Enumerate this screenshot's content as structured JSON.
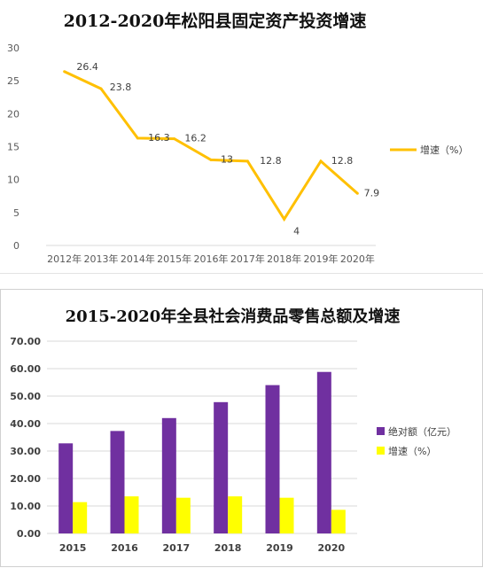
{
  "chart_data": [
    {
      "type": "line",
      "title": "2012-2020年松阳县固定资产投资增速",
      "categories": [
        "2012年",
        "2013年",
        "2014年",
        "2015年",
        "2016年",
        "2017年",
        "2018年",
        "2019年",
        "2020年"
      ],
      "series": [
        {
          "name": "增速（%）",
          "values": [
            26.4,
            23.8,
            16.3,
            16.2,
            13,
            12.8,
            4,
            12.8,
            7.9
          ],
          "color": "#FFC000"
        }
      ],
      "data_labels": [
        "26.4",
        "23.8",
        "16.3",
        "16.2",
        "13",
        "12.8",
        "4",
        "12.8",
        "7.9"
      ],
      "ylim": [
        0,
        30
      ],
      "yticks": [
        "0",
        "5",
        "10",
        "15",
        "20",
        "25",
        "30"
      ],
      "grid": false,
      "legend": "right"
    },
    {
      "type": "bar",
      "title": "2015-2020年全县社会消费品零售总额及增速",
      "categories": [
        "2015",
        "2016",
        "2017",
        "2018",
        "2019",
        "2020"
      ],
      "series": [
        {
          "name": "绝对额（亿元）",
          "values": [
            32.8,
            37.3,
            42.0,
            47.8,
            54.0,
            58.8
          ],
          "color": "#7030A0"
        },
        {
          "name": "增速（%）",
          "values": [
            11.4,
            13.5,
            13.0,
            13.5,
            13.0,
            8.6
          ],
          "color": "#FFFF00"
        }
      ],
      "ylim": [
        0,
        70
      ],
      "yticks": [
        "0.00",
        "10.00",
        "20.00",
        "30.00",
        "40.00",
        "50.00",
        "60.00",
        "70.00"
      ],
      "grid": true,
      "legend": "right"
    }
  ]
}
